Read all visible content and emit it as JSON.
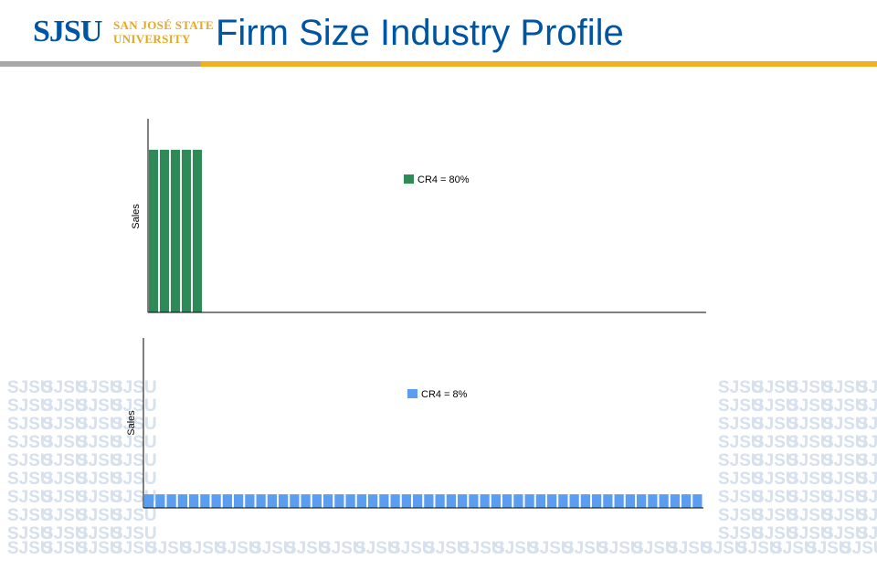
{
  "header": {
    "logo_main": "SJSU",
    "logo_line1": "SAN JOSÉ STATE",
    "logo_line2": "UNIVERSITY",
    "title": "Firm Size Industry Profile"
  },
  "watermark_text": "SJSU",
  "colors": {
    "brand_blue": "#0055a2",
    "brand_gold": "#f2b01e",
    "green_bar": "#2e8b57",
    "blue_bar": "#5b9ef0"
  },
  "chart_data": [
    {
      "type": "bar",
      "ylabel": "Sales",
      "legend": "CR4 = 80%",
      "legend_position": "top-center",
      "num_firms": 5,
      "values": [
        0.84,
        0.84,
        0.84,
        0.84,
        0.84
      ],
      "ylim": [
        0,
        1
      ],
      "color": "#2e8b57"
    },
    {
      "type": "bar",
      "ylabel": "Sales",
      "legend": "CR4 = 8%",
      "legend_position": "top-center",
      "num_firms": 50,
      "values": [
        0.08,
        0.08,
        0.08,
        0.08,
        0.08,
        0.08,
        0.08,
        0.08,
        0.08,
        0.08,
        0.08,
        0.08,
        0.08,
        0.08,
        0.08,
        0.08,
        0.08,
        0.08,
        0.08,
        0.08,
        0.08,
        0.08,
        0.08,
        0.08,
        0.08,
        0.08,
        0.08,
        0.08,
        0.08,
        0.08,
        0.08,
        0.08,
        0.08,
        0.08,
        0.08,
        0.08,
        0.08,
        0.08,
        0.08,
        0.08,
        0.08,
        0.08,
        0.08,
        0.08,
        0.08,
        0.08,
        0.08,
        0.08,
        0.08,
        0.08
      ],
      "ylim": [
        0,
        1
      ],
      "color": "#5b9ef0"
    }
  ]
}
